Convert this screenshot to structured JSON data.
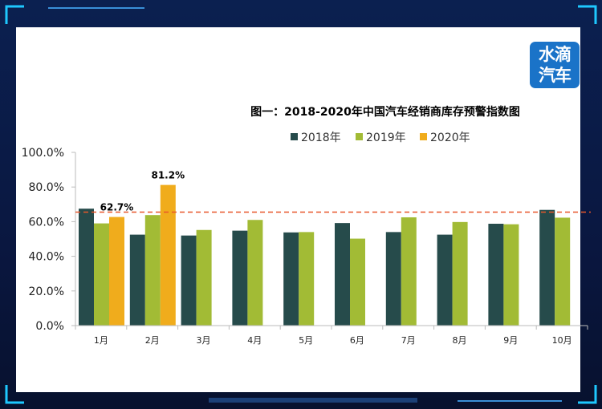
{
  "logo": {
    "line1": "水滴",
    "line2": "汽车"
  },
  "chart_data": {
    "type": "bar",
    "title": "图一：2018-2020年中国汽车经销商库存预警指数图",
    "xlabel": "",
    "ylabel": "",
    "ylim": [
      0,
      100
    ],
    "y_ticks": [
      "0.0%",
      "20.0%",
      "40.0%",
      "60.0%",
      "80.0%",
      "100.0%"
    ],
    "categories": [
      "1月",
      "2月",
      "3月",
      "4月",
      "5月",
      "6月",
      "7月",
      "8月",
      "9月",
      "10月"
    ],
    "series": [
      {
        "name": "2018年",
        "color": "#264b4b",
        "values": [
          67.5,
          52.5,
          52.0,
          54.8,
          53.8,
          59.2,
          54.0,
          52.5,
          58.8,
          66.8
        ]
      },
      {
        "name": "2019年",
        "color": "#a2bb35",
        "values": [
          59.0,
          63.8,
          55.2,
          61.0,
          54.0,
          50.2,
          62.5,
          59.8,
          58.5,
          62.3
        ]
      },
      {
        "name": "2020年",
        "color": "#f0ac1c",
        "values": [
          62.7,
          81.2,
          null,
          null,
          null,
          null,
          null,
          null,
          null,
          null
        ]
      }
    ],
    "data_labels": [
      {
        "series": 2,
        "index": 0,
        "text": "62.7%"
      },
      {
        "series": 2,
        "index": 1,
        "text": "81.2%"
      }
    ],
    "reference_line": {
      "value": 65.5,
      "color": "#e8572a",
      "style": "dashed"
    },
    "grid": false,
    "legend_position": "top"
  }
}
